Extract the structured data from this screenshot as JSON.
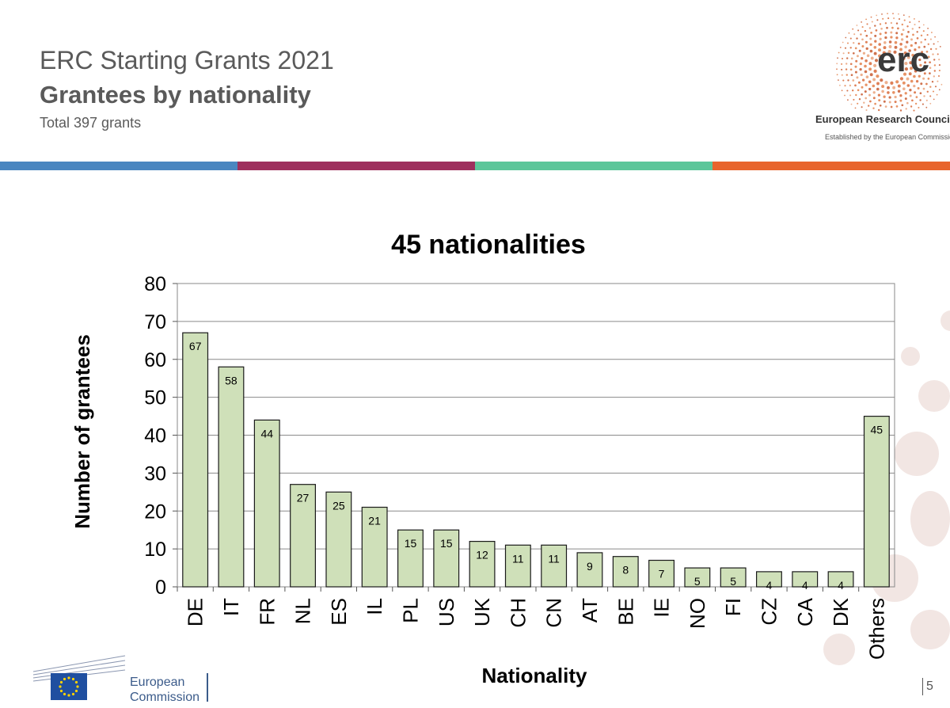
{
  "header": {
    "title": "ERC Starting Grants 2021",
    "subtitle": "Grantees by nationality",
    "total": "Total 397 grants"
  },
  "logo": {
    "wordmark": "erc",
    "name": "European Research Council",
    "tagline": "Established by the European Commission"
  },
  "colors": {
    "stripe": [
      "#4a86c0",
      "#9e2f5d",
      "#5cc69a",
      "#e8642c"
    ],
    "bar_fill": "#cfe0b9",
    "bar_stroke": "#1a1a1a",
    "text_gray": "#5a5a5a"
  },
  "footer": {
    "commission_line1": "European",
    "commission_line2": "Commission",
    "page_number": "5"
  },
  "chart_data": {
    "type": "bar",
    "title": "45 nationalities",
    "xlabel": "Nationality",
    "ylabel": "Number of grantees",
    "ylim": [
      0,
      80
    ],
    "yticks": [
      0,
      10,
      20,
      30,
      40,
      50,
      60,
      70,
      80
    ],
    "grid": true,
    "categories": [
      "DE",
      "IT",
      "FR",
      "NL",
      "ES",
      "IL",
      "PL",
      "US",
      "UK",
      "CH",
      "CN",
      "AT",
      "BE",
      "IE",
      "NO",
      "FI",
      "CZ",
      "CA",
      "DK",
      "Others"
    ],
    "values": [
      67,
      58,
      44,
      27,
      25,
      21,
      15,
      15,
      12,
      11,
      11,
      9,
      8,
      7,
      5,
      5,
      4,
      4,
      4,
      45
    ]
  }
}
